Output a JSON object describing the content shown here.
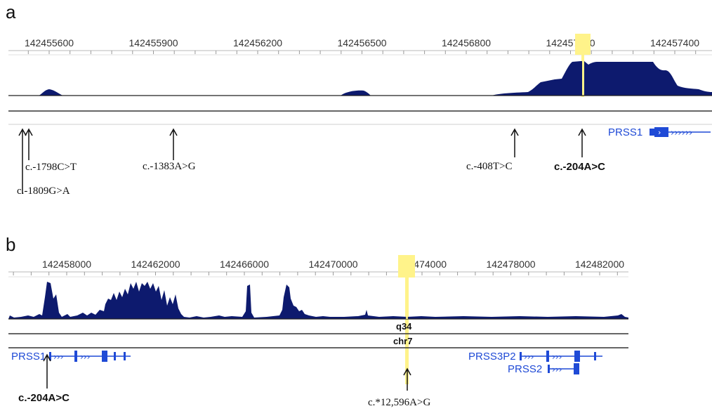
{
  "panel_a": {
    "letter": "a",
    "ruler_ticks": [
      "142455600",
      "142455900",
      "142456200",
      "142456500",
      "142456800",
      "142457100",
      "142457400"
    ],
    "gene": "PRSS1",
    "variants": [
      {
        "label": "c.-1798C>T",
        "style": "serif"
      },
      {
        "label": "c.-1809G>A",
        "style": "serif"
      },
      {
        "label": "c.-1383A>G",
        "style": "serif"
      },
      {
        "label": "c.-408T>C",
        "style": "serif"
      },
      {
        "label": "c.-204A>C",
        "style": "bold"
      }
    ]
  },
  "panel_b": {
    "letter": "b",
    "ruler_ticks": [
      "142458000",
      "142462000",
      "142466000",
      "142470000",
      "142474000",
      "142478000",
      "142482000"
    ],
    "band": "q34",
    "chromosome": "chr7",
    "genes": [
      "PRSS1",
      "PRSS3P2",
      "PRSS2"
    ],
    "variants": [
      {
        "label": "c.-204A>C",
        "style": "bold"
      },
      {
        "label": "c.*12,596A>G",
        "style": "serif"
      }
    ]
  },
  "colors": {
    "coverage": "#0d1a6e",
    "highlight": "#fff38a",
    "gene": "#1f4ad6",
    "ruler": "#9a9a9a"
  }
}
